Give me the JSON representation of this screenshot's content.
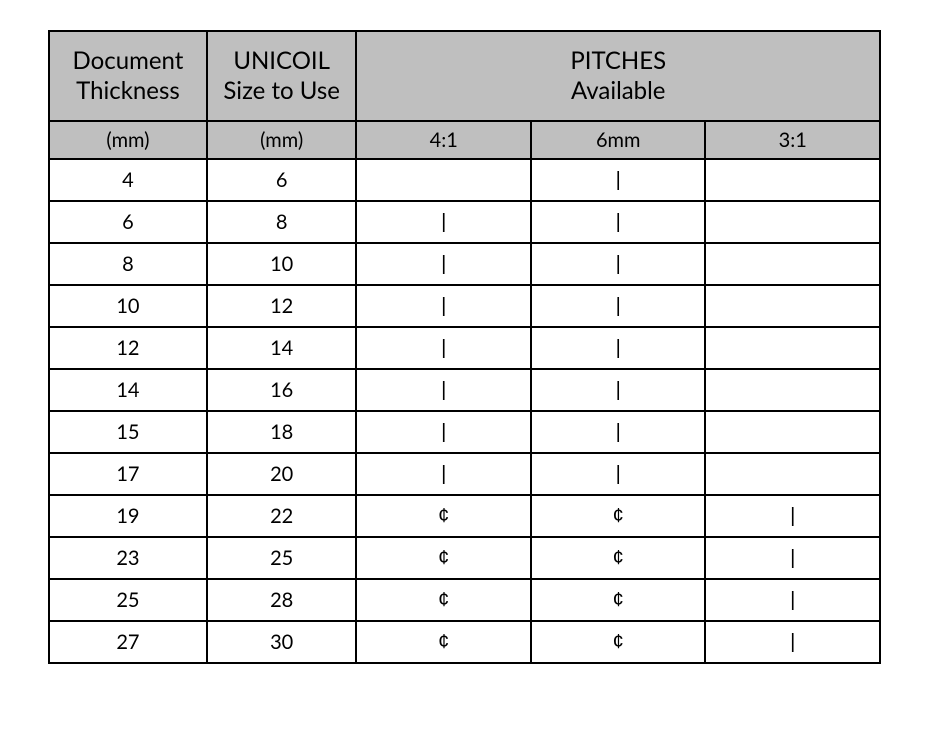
{
  "table": {
    "type": "table",
    "header1": {
      "doc_thickness": "Document\nThickness",
      "unicoil_size": "UNICOIL\nSize to Use",
      "pitches": "PITCHES\nAvailable"
    },
    "header2": {
      "col1": "(mm)",
      "col2": "(mm)",
      "col3": "4:1",
      "col4": "6mm",
      "col5": "3:1"
    },
    "marks": {
      "bar": "|",
      "cent": "¢",
      "empty": ""
    },
    "column_widths_pct": [
      20,
      20,
      20,
      20,
      20
    ],
    "colors": {
      "header_bg": "#bfbfbf",
      "body_bg": "#ffffff",
      "border": "#000000",
      "text": "#000000"
    },
    "font_sizes": {
      "header1": 24,
      "header2": 20,
      "body": 20
    },
    "rows": [
      {
        "thickness": "4",
        "size": "6",
        "p41": "",
        "p6mm": "bar",
        "p31": ""
      },
      {
        "thickness": "6",
        "size": "8",
        "p41": "bar",
        "p6mm": "bar",
        "p31": ""
      },
      {
        "thickness": "8",
        "size": "10",
        "p41": "bar",
        "p6mm": "bar",
        "p31": ""
      },
      {
        "thickness": "10",
        "size": "12",
        "p41": "bar",
        "p6mm": "bar",
        "p31": ""
      },
      {
        "thickness": "12",
        "size": "14",
        "p41": "bar",
        "p6mm": "bar",
        "p31": ""
      },
      {
        "thickness": "14",
        "size": "16",
        "p41": "bar",
        "p6mm": "bar",
        "p31": ""
      },
      {
        "thickness": "15",
        "size": "18",
        "p41": "bar",
        "p6mm": "bar",
        "p31": ""
      },
      {
        "thickness": "17",
        "size": "20",
        "p41": "bar",
        "p6mm": "bar",
        "p31": ""
      },
      {
        "thickness": "19",
        "size": "22",
        "p41": "cent",
        "p6mm": "cent",
        "p31": "bar"
      },
      {
        "thickness": "23",
        "size": "25",
        "p41": "cent",
        "p6mm": "cent",
        "p31": "bar"
      },
      {
        "thickness": "25",
        "size": "28",
        "p41": "cent",
        "p6mm": "cent",
        "p31": "bar"
      },
      {
        "thickness": "27",
        "size": "30",
        "p41": "cent",
        "p6mm": "cent",
        "p31": "bar"
      }
    ]
  }
}
